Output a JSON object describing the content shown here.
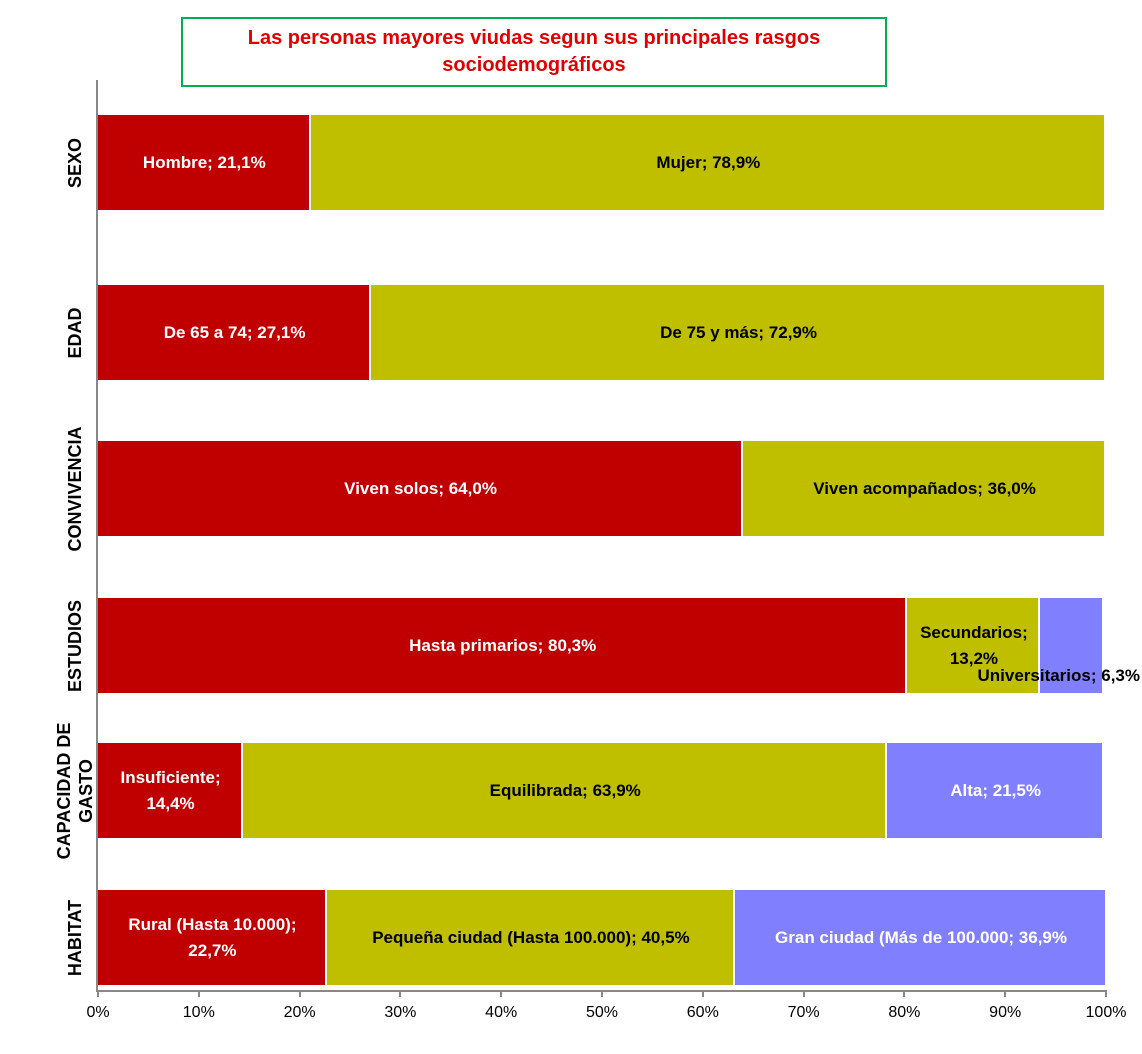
{
  "chart_data": {
    "type": "bar",
    "orientation": "horizontal",
    "stacked": true,
    "title": "Las personas mayores viudas segun sus principales rasgos sociodemográficos",
    "categories": [
      "SEXO",
      "EDAD",
      "CONVIVENCIA",
      "ESTUDIOS",
      "CAPACIDAD DE GASTO",
      "HABITAT"
    ],
    "series": [
      {
        "color": "#c00000",
        "values": [
          21.1,
          27.1,
          64.0,
          80.3,
          14.4,
          22.7
        ],
        "value_labels": [
          "Hombre; 21,1%",
          "De 65 a 74; 27,1%",
          "Viven solos; 64,0%",
          "Hasta primarios; 80,3%",
          "Insuficiente; 14,4%",
          "Rural (Hasta 10.000); 22,7%"
        ]
      },
      {
        "color": "#bfbf00",
        "values": [
          78.9,
          72.9,
          36.0,
          13.2,
          63.9,
          40.5
        ],
        "value_labels": [
          "Mujer; 78,9%",
          "De 75 y más; 72,9%",
          "Viven acompañados; 36,0%",
          "Secundarios; 13,2%",
          "Equilibrada; 63,9%",
          "Pequeña ciudad (Hasta 100.000); 40,5%"
        ]
      },
      {
        "color": "#8080ff",
        "values": [
          null,
          null,
          null,
          6.3,
          21.5,
          36.9
        ],
        "value_labels": [
          null,
          null,
          null,
          "Universitarios; 6,3%",
          "Alta; 21,5%",
          "Gran ciudad (Más de 100.000; 36,9%"
        ]
      }
    ],
    "xlim": [
      0,
      100
    ],
    "xticks": [
      {
        "value": 0,
        "label": "0%"
      },
      {
        "value": 10,
        "label": "10%"
      },
      {
        "value": 20,
        "label": "20%"
      },
      {
        "value": 30,
        "label": "30%"
      },
      {
        "value": 40,
        "label": "40%"
      },
      {
        "value": 50,
        "label": "50%"
      },
      {
        "value": 60,
        "label": "60%"
      },
      {
        "value": 70,
        "label": "70%"
      },
      {
        "value": 80,
        "label": "80%"
      },
      {
        "value": 90,
        "label": "90%"
      },
      {
        "value": 100,
        "label": "100%"
      }
    ]
  }
}
